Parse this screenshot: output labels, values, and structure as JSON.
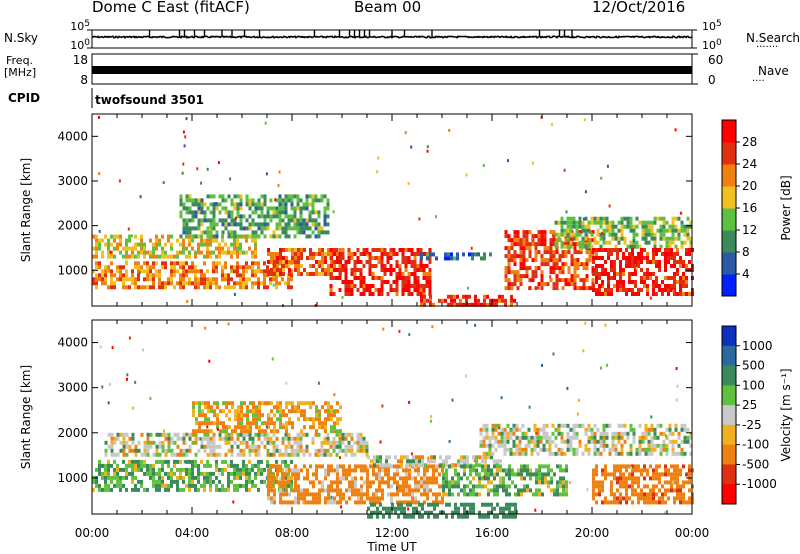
{
  "header": {
    "station": "Dome C East (fitACF)",
    "beam": "Beam 00",
    "date": "12/Oct/2016"
  },
  "panels": {
    "nsky_label": "N.Sky",
    "nsearch_label": "N.Search",
    "nsearch_dots": "·······",
    "freq_label": "Freq.",
    "freq_unit": "[MHz]",
    "nave_label": "Nave",
    "nave_dots": "····",
    "cpid_label": "CPID",
    "cpid_value": "twofsound 3501",
    "left_ticks": {
      "top": "10^5",
      "bottom": "10^0"
    },
    "right_ticks": {
      "top": "10^5",
      "bottom": "10^0"
    },
    "freq_ticks": [
      "18",
      "8"
    ],
    "nave_ticks": [
      "60",
      "0"
    ]
  },
  "chart_data": [
    {
      "type": "heatmap",
      "title": "",
      "xlabel": "Time UT",
      "ylabel": "Slant Range [km]",
      "x_ticks": [
        "00:00",
        "04:00",
        "08:00",
        "12:00",
        "16:00",
        "20:00",
        "00:00"
      ],
      "y_ticks": [
        1000,
        2000,
        3000,
        4000
      ],
      "ylim": [
        200,
        4500
      ],
      "colorbar": {
        "label": "Power [dB]",
        "ticks": [
          4,
          8,
          12,
          16,
          20,
          24,
          28
        ],
        "colors": [
          "#0020ff",
          "#2a5aa8",
          "#3a8a5a",
          "#5cc040",
          "#f0c020",
          "#f08010",
          "#e03010",
          "#ff0000"
        ]
      },
      "regions": [
        {
          "t0": 0.0,
          "t1": 8.0,
          "r0": 600,
          "r1": 1200,
          "value": 22
        },
        {
          "t0": 0.0,
          "t1": 6.5,
          "r0": 1300,
          "r1": 1800,
          "value": 18
        },
        {
          "t0": 3.5,
          "t1": 9.5,
          "r0": 1800,
          "r1": 2700,
          "value": 12
        },
        {
          "t0": 7.0,
          "t1": 10.0,
          "r0": 900,
          "r1": 1500,
          "value": 24
        },
        {
          "t0": 9.5,
          "t1": 13.5,
          "r0": 500,
          "r1": 1500,
          "value": 28
        },
        {
          "t0": 13.0,
          "t1": 17.0,
          "r0": 250,
          "r1": 450,
          "value": 26
        },
        {
          "t0": 13.0,
          "t1": 16.0,
          "r0": 1250,
          "r1": 1400,
          "value": 8
        },
        {
          "t0": 16.5,
          "t1": 20.0,
          "r0": 600,
          "r1": 1900,
          "value": 26
        },
        {
          "t0": 18.5,
          "t1": 24.0,
          "r0": 1500,
          "r1": 2200,
          "value": 14
        },
        {
          "t0": 20.0,
          "t1": 24.0,
          "r0": 500,
          "r1": 1500,
          "value": 28
        }
      ]
    },
    {
      "type": "heatmap",
      "title": "",
      "xlabel": "Time UT",
      "ylabel": "Slant Range [km]",
      "x_ticks": [
        "00:00",
        "04:00",
        "08:00",
        "12:00",
        "16:00",
        "20:00",
        "00:00"
      ],
      "y_ticks": [
        1000,
        2000,
        3000,
        4000
      ],
      "ylim": [
        200,
        4500
      ],
      "colorbar": {
        "label": "Velocity [m s⁻¹]",
        "ticks": [
          1000,
          500,
          100,
          25,
          -25,
          -100,
          -500,
          -1000
        ],
        "colors": [
          "#1030c0",
          "#2a6aa0",
          "#3a8a5a",
          "#60c040",
          "#c8c8c8",
          "#f0b020",
          "#f08010",
          "#e03010",
          "#ff0000"
        ]
      },
      "regions": [
        {
          "t0": 0.0,
          "t1": 8.0,
          "r0": 700,
          "r1": 1400,
          "value": 100
        },
        {
          "t0": 0.5,
          "t1": 11.0,
          "r0": 1500,
          "r1": 2000,
          "value": 0
        },
        {
          "t0": 4.0,
          "t1": 10.0,
          "r0": 2000,
          "r1": 2700,
          "value": -100
        },
        {
          "t0": 7.0,
          "t1": 14.0,
          "r0": 500,
          "r1": 1300,
          "value": -200
        },
        {
          "t0": 11.0,
          "t1": 16.5,
          "r0": 1300,
          "r1": 1500,
          "value": 0
        },
        {
          "t0": 11.0,
          "t1": 17.0,
          "r0": 150,
          "r1": 450,
          "value": 300
        },
        {
          "t0": 14.0,
          "t1": 19.0,
          "r0": 600,
          "r1": 1300,
          "value": 100
        },
        {
          "t0": 15.5,
          "t1": 24.0,
          "r0": 1500,
          "r1": 2200,
          "value": 0
        },
        {
          "t0": 20.0,
          "t1": 24.0,
          "r0": 500,
          "r1": 1300,
          "value": -400
        }
      ]
    }
  ]
}
